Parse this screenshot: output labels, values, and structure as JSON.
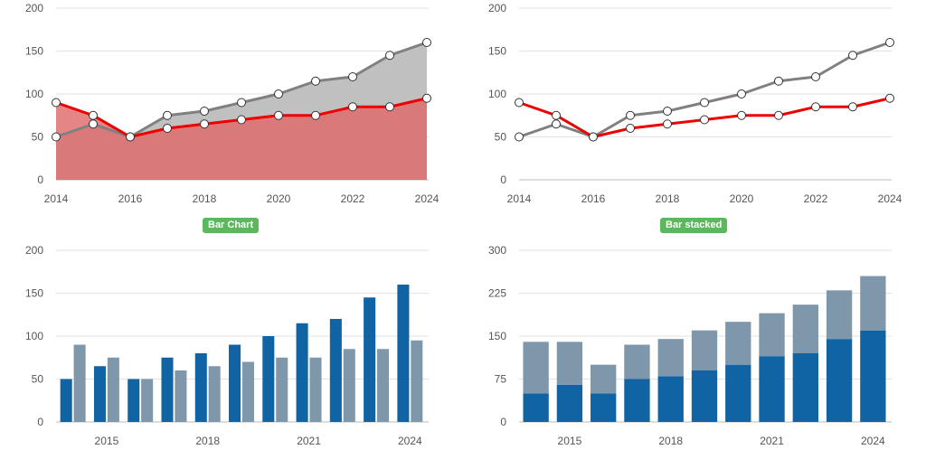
{
  "buttons": {
    "bar_chart_label": "Bar Chart",
    "bar_stacked_label": "Bar stacked"
  },
  "colors": {
    "red": "#ee0000",
    "gray": "#808080",
    "gray_fill": "#c0c0c0",
    "red_fill": "#e06666",
    "blue": "#1164a3",
    "steel": "#7f97ab"
  },
  "chart_data": [
    {
      "type": "area",
      "x": [
        2014,
        2015,
        2016,
        2017,
        2018,
        2019,
        2020,
        2021,
        2022,
        2023,
        2024
      ],
      "series": [
        {
          "values": [
            50,
            65,
            50,
            75,
            80,
            90,
            100,
            115,
            120,
            145,
            160
          ]
        },
        {
          "values": [
            90,
            75,
            50,
            60,
            65,
            70,
            75,
            75,
            85,
            85,
            95
          ]
        }
      ],
      "xticks": [
        "2014",
        "2016",
        "2018",
        "2020",
        "2022",
        "2024"
      ],
      "yticks": [
        "0",
        "50",
        "100",
        "150",
        "200"
      ],
      "ylim": [
        0,
        200
      ],
      "grid": true
    },
    {
      "type": "line",
      "x": [
        2014,
        2015,
        2016,
        2017,
        2018,
        2019,
        2020,
        2021,
        2022,
        2023,
        2024
      ],
      "series": [
        {
          "values": [
            50,
            65,
            50,
            75,
            80,
            90,
            100,
            115,
            120,
            145,
            160
          ]
        },
        {
          "values": [
            90,
            75,
            50,
            60,
            65,
            70,
            75,
            75,
            85,
            85,
            95
          ]
        }
      ],
      "xticks": [
        "2014",
        "2016",
        "2018",
        "2020",
        "2022",
        "2024"
      ],
      "yticks": [
        "0",
        "50",
        "100",
        "150",
        "200"
      ],
      "ylim": [
        0,
        200
      ],
      "grid": true
    },
    {
      "type": "bar",
      "categories": [
        "2014",
        "2015",
        "2016",
        "2017",
        "2018",
        "2019",
        "2020",
        "2021",
        "2022",
        "2023",
        "2024"
      ],
      "series": [
        {
          "values": [
            50,
            65,
            50,
            75,
            80,
            90,
            100,
            115,
            120,
            145,
            160
          ]
        },
        {
          "values": [
            90,
            75,
            50,
            60,
            65,
            70,
            75,
            75,
            85,
            85,
            95
          ]
        }
      ],
      "xticks": [
        "2015",
        "2018",
        "2021",
        "2024"
      ],
      "yticks": [
        "0",
        "50",
        "100",
        "150",
        "200"
      ],
      "ylim": [
        0,
        200
      ],
      "grid": true
    },
    {
      "type": "bar",
      "stacked": true,
      "categories": [
        "2014",
        "2015",
        "2016",
        "2017",
        "2018",
        "2019",
        "2020",
        "2021",
        "2022",
        "2023",
        "2024"
      ],
      "series": [
        {
          "values": [
            50,
            65,
            50,
            75,
            80,
            90,
            100,
            115,
            120,
            145,
            160
          ]
        },
        {
          "values": [
            90,
            75,
            50,
            60,
            65,
            70,
            75,
            75,
            85,
            85,
            95
          ]
        }
      ],
      "xticks": [
        "2015",
        "2018",
        "2021",
        "2024"
      ],
      "yticks": [
        "0",
        "75",
        "150",
        "225",
        "300"
      ],
      "ylim": [
        0,
        300
      ],
      "grid": true
    }
  ]
}
